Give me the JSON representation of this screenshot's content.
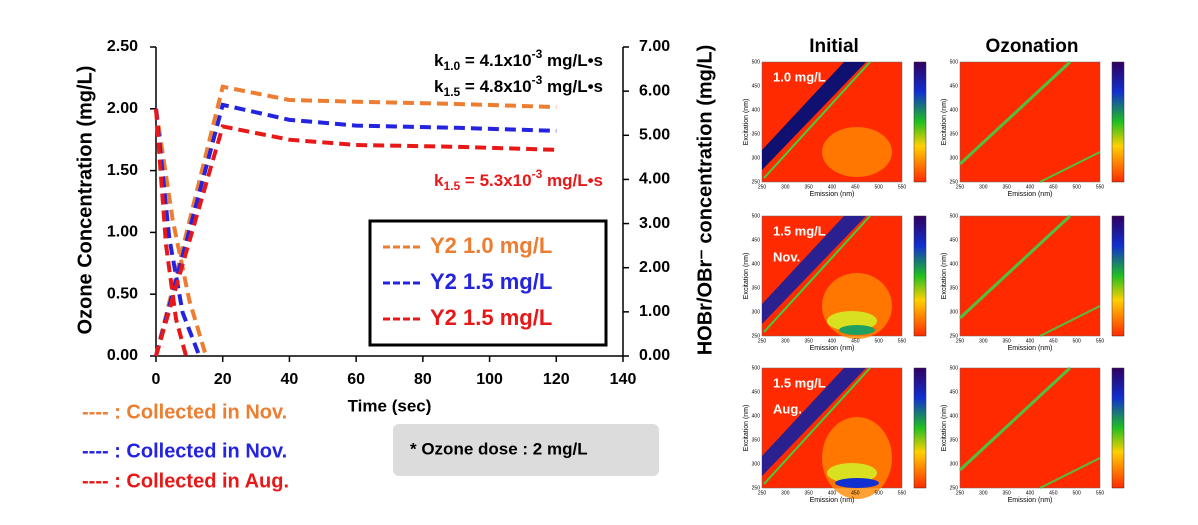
{
  "chart_data": {
    "type": "line",
    "xlabel": "Time (sec)",
    "ylabel": "Ozone Concentration (mg/L)",
    "y2label": "HOBr/OBr⁻ concentration (mg/L)",
    "xlim": [
      0,
      140
    ],
    "xticks": [
      0,
      20,
      40,
      60,
      80,
      100,
      120,
      140
    ],
    "ylim": [
      0,
      2.5
    ],
    "yticks": [
      {
        "value": 0,
        "label": "0.00"
      },
      {
        "value": 0.5,
        "label": "0.50"
      },
      {
        "value": 1,
        "label": "1.00"
      },
      {
        "value": 1.5,
        "label": "1.50"
      },
      {
        "value": 2,
        "label": "2.00"
      },
      {
        "value": 2.5,
        "label": "2.50"
      }
    ],
    "y2lim": [
      0,
      7
    ],
    "y2ticks": [
      {
        "value": 0,
        "label": "0.00"
      },
      {
        "value": 1,
        "label": "1.00"
      },
      {
        "value": 2,
        "label": "2.00"
      },
      {
        "value": 3,
        "label": "3.00"
      },
      {
        "value": 4,
        "label": "4.00"
      },
      {
        "value": 5,
        "label": "5.00"
      },
      {
        "value": 6,
        "label": "6.00"
      },
      {
        "value": 7,
        "label": "7.00"
      }
    ],
    "series": [
      {
        "name": "Y2 1.0 mg/L",
        "color": "#ed7d31",
        "ozone_x": [
          0,
          5,
          10,
          15
        ],
        "ozone_values": [
          2.0,
          1.1,
          0.45,
          0
        ],
        "hobr_x": [
          0,
          20,
          40,
          60,
          90,
          120
        ],
        "hobr_values": [
          0,
          6.1,
          5.8,
          5.76,
          5.71,
          5.64
        ]
      },
      {
        "name": "Y2 1.5 mg/L",
        "color": "#2323e0",
        "ozone_x": [
          0,
          4,
          8,
          13
        ],
        "ozone_values": [
          2.0,
          0.95,
          0.35,
          0
        ],
        "hobr_x": [
          0,
          20,
          40,
          60,
          90,
          120
        ],
        "hobr_values": [
          0,
          5.69,
          5.35,
          5.22,
          5.17,
          5.1
        ]
      },
      {
        "name": "Y2 1.5 mg/L",
        "color": "#e81818",
        "ozone_x": [
          0,
          3,
          6,
          9
        ],
        "ozone_values": [
          2.0,
          0.9,
          0.3,
          0
        ],
        "hobr_x": [
          0,
          20,
          40,
          60,
          90,
          120
        ],
        "hobr_values": [
          0,
          5.2,
          4.9,
          4.78,
          4.74,
          4.67
        ]
      }
    ],
    "rate_labels": [
      {
        "k": "k",
        "sub": "1.0",
        "mid": " = 4.1x10",
        "sup": "-3",
        "unit": " mg/L•s",
        "color": "#000000"
      },
      {
        "k": "k",
        "sub": "1.5",
        "mid": " = 4.8x10",
        "sup": "-3",
        "unit": " mg/L•s",
        "color": "#000000"
      },
      {
        "k": "k",
        "sub": "1.5",
        "mid": " = 5.3x10",
        "sup": "-3",
        "unit": " mg/L•s",
        "color": "#e81818"
      }
    ],
    "notes": [
      {
        "text": "---- : Collected in Nov.",
        "color": "#ed7d31"
      },
      {
        "text": "---- : Collected in Nov.",
        "color": "#2323e0"
      },
      {
        "text": "---- : Collected in Aug.",
        "color": "#e81818"
      }
    ],
    "dose_note": "* Ozone dose : 2 mg/L"
  },
  "eem": {
    "column_titles": [
      "Initial",
      "Ozonation"
    ],
    "row_labels": [
      [
        "1.0 mg/L"
      ],
      [
        "1.5 mg/L",
        "Nov."
      ],
      [
        "1.5 mg/L",
        "Aug."
      ]
    ],
    "xlabel": "Emission (nm)",
    "ylabel": "Excitation (nm)",
    "xticks": [
      250,
      300,
      350,
      400,
      450,
      500,
      550
    ],
    "yticks": [
      250,
      300,
      350,
      400,
      450,
      500
    ]
  }
}
